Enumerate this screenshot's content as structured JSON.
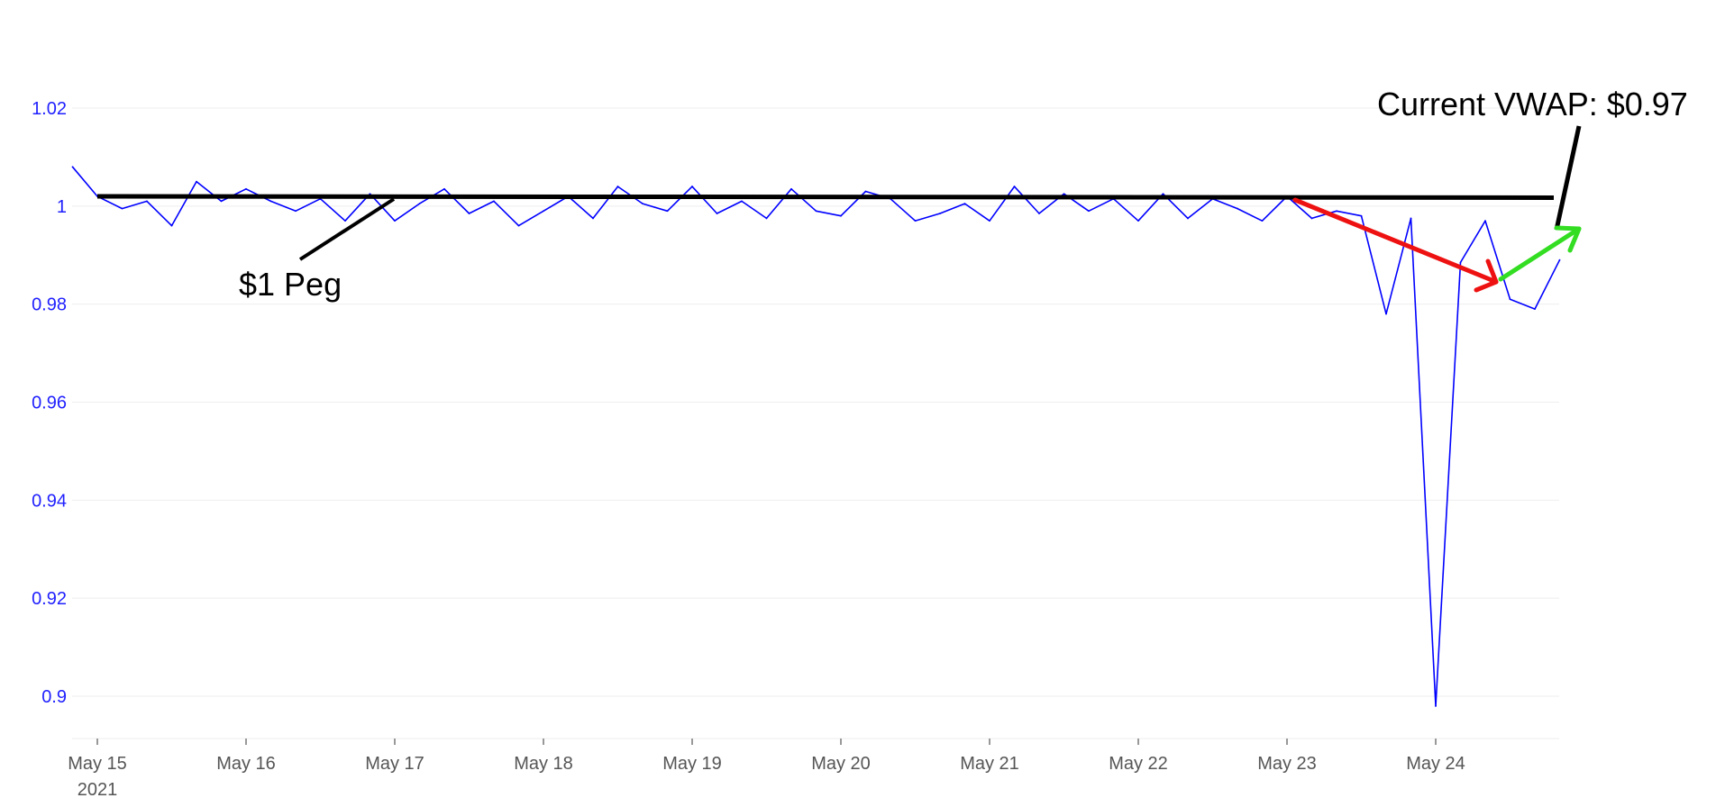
{
  "chart_data": {
    "type": "line",
    "title": "",
    "xlabel": "",
    "ylabel": "",
    "ylim": [
      0.89,
      1.023
    ],
    "yticks": [
      0.9,
      0.92,
      0.94,
      0.96,
      0.98,
      1,
      1.02
    ],
    "ytick_labels": [
      "0.9",
      "0.92",
      "0.94",
      "0.96",
      "0.98",
      "1",
      "1.02"
    ],
    "x_start": "2021-05-14T20:00",
    "x_end": "2021-05-24T20:00",
    "xticks": [
      "2021-05-15",
      "2021-05-16",
      "2021-05-17",
      "2021-05-18",
      "2021-05-19",
      "2021-05-20",
      "2021-05-21",
      "2021-05-22",
      "2021-05-23",
      "2021-05-24"
    ],
    "xtick_labels": [
      "May 15",
      "May 16",
      "May 17",
      "May 18",
      "May 19",
      "May 20",
      "May 21",
      "May 22",
      "May 23",
      "May 24"
    ],
    "year_label": "2021",
    "grid": true,
    "series": [
      {
        "color": "#0000ff",
        "x": [
          "2021-05-14T20:00",
          "2021-05-15T00:00",
          "2021-05-15T04:00",
          "2021-05-15T08:00",
          "2021-05-15T12:00",
          "2021-05-15T16:00",
          "2021-05-15T20:00",
          "2021-05-16T00:00",
          "2021-05-16T04:00",
          "2021-05-16T08:00",
          "2021-05-16T12:00",
          "2021-05-16T16:00",
          "2021-05-16T20:00",
          "2021-05-17T00:00",
          "2021-05-17T04:00",
          "2021-05-17T08:00",
          "2021-05-17T12:00",
          "2021-05-17T16:00",
          "2021-05-17T20:00",
          "2021-05-18T00:00",
          "2021-05-18T04:00",
          "2021-05-18T08:00",
          "2021-05-18T12:00",
          "2021-05-18T16:00",
          "2021-05-18T20:00",
          "2021-05-19T00:00",
          "2021-05-19T04:00",
          "2021-05-19T08:00",
          "2021-05-19T12:00",
          "2021-05-19T16:00",
          "2021-05-19T20:00",
          "2021-05-20T00:00",
          "2021-05-20T04:00",
          "2021-05-20T08:00",
          "2021-05-20T12:00",
          "2021-05-20T16:00",
          "2021-05-20T20:00",
          "2021-05-21T00:00",
          "2021-05-21T04:00",
          "2021-05-21T08:00",
          "2021-05-21T12:00",
          "2021-05-21T16:00",
          "2021-05-21T20:00",
          "2021-05-22T00:00",
          "2021-05-22T04:00",
          "2021-05-22T08:00",
          "2021-05-22T12:00",
          "2021-05-22T16:00",
          "2021-05-22T20:00",
          "2021-05-23T00:00",
          "2021-05-23T04:00",
          "2021-05-23T08:00",
          "2021-05-23T12:00",
          "2021-05-23T16:00",
          "2021-05-23T20:00",
          "2021-05-24T00:00",
          "2021-05-24T04:00",
          "2021-05-24T08:00",
          "2021-05-24T12:00",
          "2021-05-24T16:00",
          "2021-05-24T20:00"
        ],
        "values": [
          1.008,
          1.002,
          0.9995,
          1.001,
          0.996,
          1.005,
          1.001,
          1.0035,
          1.001,
          0.999,
          1.0015,
          0.997,
          1.0025,
          0.997,
          1.0005,
          1.0035,
          0.9985,
          1.001,
          0.996,
          0.999,
          1.002,
          0.9975,
          1.004,
          1.0005,
          0.999,
          1.004,
          0.9985,
          1.001,
          0.9975,
          1.0035,
          0.999,
          0.998,
          1.003,
          1.0015,
          0.997,
          0.9985,
          1.0005,
          0.997,
          1.004,
          0.9985,
          1.0025,
          0.999,
          1.0015,
          0.997,
          1.0025,
          0.9975,
          1.0015,
          0.9995,
          0.997,
          1.002,
          0.9975,
          0.999,
          0.998,
          0.978,
          0.9975,
          0.898,
          0.9885,
          0.997,
          0.981,
          0.979,
          0.989
        ]
      }
    ],
    "reference_line": {
      "label": "$1 Peg",
      "value": 1.002,
      "color": "#000000"
    },
    "annotations": {
      "peg_label": "$1 Peg",
      "vwap_label": "Current VWAP: $0.97"
    },
    "arrows": {
      "down_color": "#ee1111",
      "up_color": "#33dd22",
      "black_color": "#000000"
    }
  }
}
